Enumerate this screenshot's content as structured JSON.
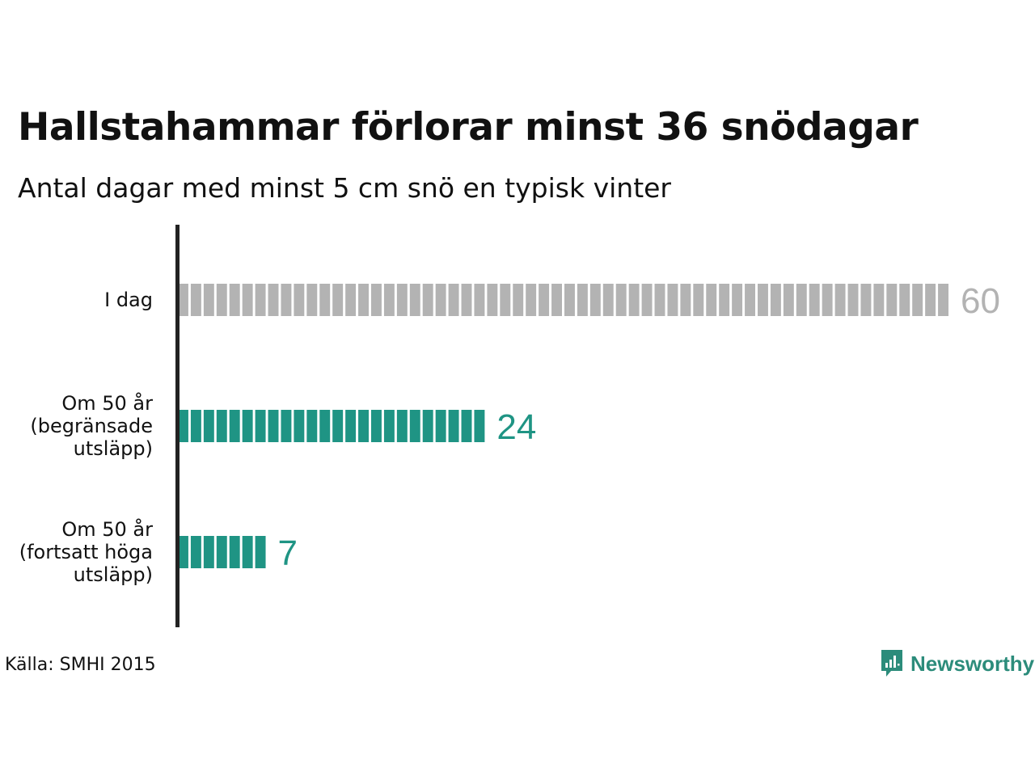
{
  "title": "Hallstahammar förlorar minst 36 snödagar",
  "subtitle": "Antal dagar med minst 5 cm snö en typisk vinter",
  "source": "Källa: SMHI 2015",
  "brand": "Newsworthy",
  "colors": {
    "today": "#b3b3b3",
    "future": "#1f9484",
    "axis": "#222222",
    "brand": "#2c8c7b"
  },
  "chart_data": {
    "type": "bar",
    "orientation": "horizontal",
    "categories": [
      [
        "I dag"
      ],
      [
        "Om 50 år",
        "(begränsade",
        "utsläpp)"
      ],
      [
        "Om 50 år",
        "(fortsatt höga",
        "utsläpp)"
      ]
    ],
    "values": [
      60,
      24,
      7
    ],
    "bar_colors": [
      "#b3b3b3",
      "#1f9484",
      "#1f9484"
    ],
    "unit_segments": true,
    "xlim": [
      0,
      60
    ],
    "grid": false
  }
}
